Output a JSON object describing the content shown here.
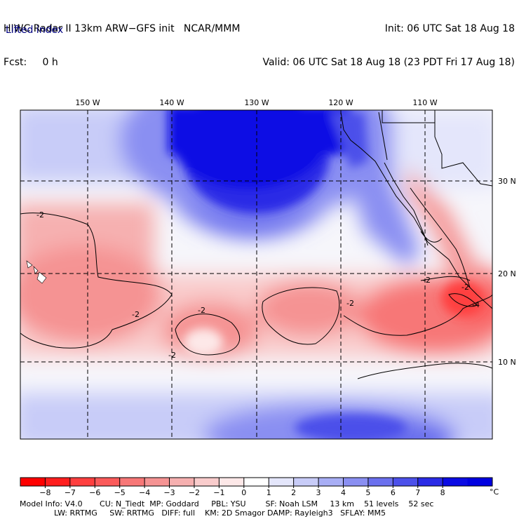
{
  "header": {
    "line1_left": "HIWC Radar II 13km ARW−GFS init   NCAR/MMM",
    "line2_left": "Fcst:     0 h",
    "line1_right": "Init: 06 UTC Sat 18 Aug 18",
    "line2_right": "Valid: 06 UTC Sat 18 Aug 18 (23 PDT Fri 17 Aug 18)",
    "field": "Lifted index"
  },
  "map": {
    "lon_labels": [
      "150 W",
      "140 W",
      "130 W",
      "120 W",
      "110 W"
    ],
    "lat_labels": [
      "30 N",
      "20 N",
      "10 N"
    ],
    "contour_labels": [
      "-2",
      "-2",
      "-2",
      "-2",
      "-2",
      "-2",
      "-2",
      "-4"
    ]
  },
  "colorbar": {
    "ticks": [
      "−8",
      "−7",
      "−6",
      "−5",
      "−4",
      "−3",
      "−2",
      "−1",
      "0",
      "1",
      "2",
      "3",
      "4",
      "5",
      "6",
      "7",
      "8"
    ],
    "unit": "°C",
    "colors": [
      "#ff0000",
      "#ff1e1e",
      "#ff3f3f",
      "#fb5a5a",
      "#f77777",
      "#f59393",
      "#f6b0b0",
      "#f9cccc",
      "#fde8e8",
      "#ffffff",
      "#e4e6fb",
      "#c8ccf8",
      "#a8aef5",
      "#8a8ff2",
      "#6b70ee",
      "#4c50ea",
      "#2a2be6",
      "#0b0be4",
      "#0000e0"
    ]
  },
  "model_info": {
    "line1": "Model Info: V4.0       CU: N_Tiedt  MP: Goddard     PBL: YSU        SF: Noah LSM     13 km    51 levels    52 sec",
    "line2": "              LW: RRTMG     SW: RRTMG   DIFF: full    KM: 2D Smagor DAMP: Rayleigh3   SFLAY: MM5"
  }
}
